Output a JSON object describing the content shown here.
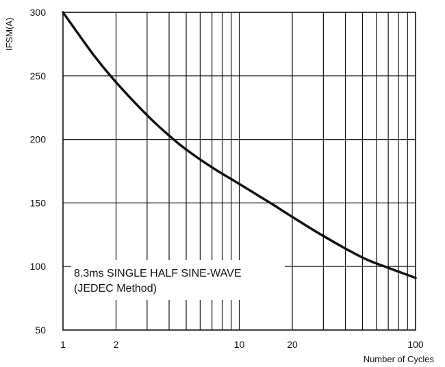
{
  "chart_data": {
    "type": "line",
    "title": "",
    "xlabel": "Number of Cycles",
    "ylabel": "IFSM(A)",
    "x_scale": "log",
    "xlim": [
      1,
      100
    ],
    "ylim": [
      50,
      300
    ],
    "x_ticks": [
      1,
      2,
      10,
      20,
      100
    ],
    "x_tick_labels": [
      "1",
      "2",
      "10",
      "20",
      "100"
    ],
    "y_ticks": [
      50,
      100,
      150,
      200,
      250,
      300
    ],
    "y_tick_labels": [
      "50",
      "100",
      "150",
      "200",
      "250",
      "300"
    ],
    "grid": true,
    "annotation": {
      "line1": "8.3ms SINGLE HALF SINE-WAVE",
      "line2": "(JEDEC Method)"
    },
    "series": [
      {
        "x": [
          1,
          1.5,
          2,
          3,
          4,
          5,
          7,
          10,
          15,
          20,
          30,
          50,
          70,
          100
        ],
        "y": [
          300,
          266,
          245,
          219,
          203,
          192,
          178,
          165,
          150,
          139,
          124,
          107,
          99,
          91
        ]
      }
    ],
    "colors": {
      "line": "#111111",
      "grid": "#111111"
    }
  }
}
